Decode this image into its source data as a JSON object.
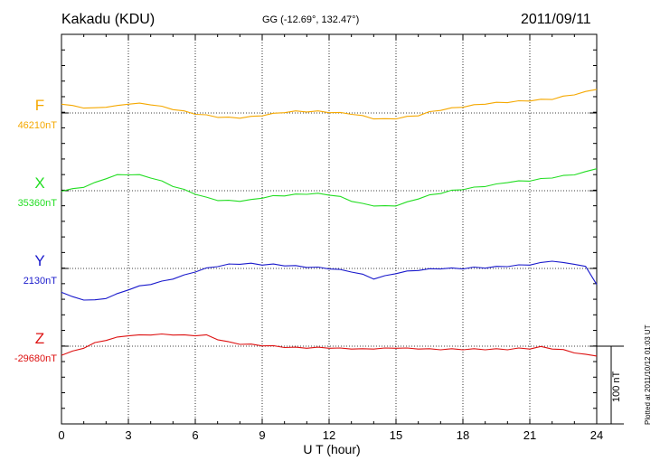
{
  "header": {
    "station": "Kakadu (KDU)",
    "coords": "GG (-12.69°, 132.47°)",
    "date": "2011/09/11"
  },
  "footer": {
    "plotted": "Plotted at 2011/10/12 01:03 UT",
    "scale_bar": "100 nT"
  },
  "chart_data": {
    "type": "line",
    "xlabel": "U T (hour)",
    "xlim": [
      0,
      24
    ],
    "xticks": [
      0,
      3,
      6,
      9,
      12,
      15,
      18,
      21,
      24
    ],
    "grid": true,
    "scale_bar_nT": 100,
    "series": [
      {
        "name": "F",
        "baseline_label": "46210nT",
        "color": "#f5a800",
        "x": [
          0,
          0.5,
          1,
          1.5,
          2,
          2.5,
          3,
          3.5,
          4,
          4.5,
          5,
          5.5,
          6,
          6.5,
          7,
          7.5,
          8,
          8.5,
          9,
          9.5,
          10,
          10.5,
          11,
          11.5,
          12,
          12.5,
          13,
          13.5,
          14,
          14.5,
          15,
          15.5,
          16,
          16.5,
          17,
          17.5,
          18,
          18.5,
          19,
          19.5,
          20,
          20.5,
          21,
          21.5,
          22,
          22.5,
          23,
          23.5,
          24
        ],
        "values": [
          12,
          9,
          7,
          6,
          8,
          9,
          12,
          12,
          11,
          8,
          5,
          2,
          -1,
          -3,
          -5,
          -6,
          -6,
          -5,
          -3,
          -1,
          1,
          2,
          2,
          2,
          1,
          0,
          -1,
          -4,
          -7,
          -8,
          -7,
          -5,
          -3,
          1,
          4,
          6,
          8,
          10,
          12,
          13,
          14,
          15,
          16,
          17,
          18,
          21,
          24,
          27,
          31
        ]
      },
      {
        "name": "X",
        "baseline_label": "35360nT",
        "color": "#22dd22",
        "x": [
          0,
          0.5,
          1,
          1.5,
          2,
          2.5,
          3,
          3.5,
          4,
          4.5,
          5,
          5.5,
          6,
          6.5,
          7,
          7.5,
          8,
          8.5,
          9,
          9.5,
          10,
          10.5,
          11,
          11.5,
          12,
          12.5,
          13,
          13.5,
          14,
          14.5,
          15,
          15.5,
          16,
          16.5,
          17,
          17.5,
          18,
          18.5,
          19,
          19.5,
          20,
          20.5,
          21,
          21.5,
          22,
          22.5,
          23,
          23.5,
          24
        ],
        "values": [
          0,
          2,
          5,
          10,
          16,
          20,
          21,
          20,
          17,
          12,
          6,
          1,
          -4,
          -9,
          -12,
          -13,
          -13,
          -12,
          -9,
          -7,
          -6,
          -5,
          -4,
          -4,
          -5,
          -8,
          -13,
          -17,
          -19,
          -20,
          -19,
          -15,
          -10,
          -6,
          -3,
          0,
          2,
          4,
          6,
          8,
          11,
          12,
          13,
          15,
          17,
          19,
          21,
          24,
          29
        ]
      },
      {
        "name": "Y",
        "baseline_label": "2130nT",
        "color": "#1a1acc",
        "x": [
          0,
          0.5,
          1,
          1.5,
          2,
          2.5,
          3,
          3.5,
          4,
          4.5,
          5,
          5.5,
          6,
          6.5,
          7,
          7.5,
          8,
          8.5,
          9,
          9.5,
          10,
          10.5,
          11,
          11.5,
          12,
          12.5,
          13,
          13.5,
          14,
          14.5,
          15,
          15.5,
          16,
          16.5,
          17,
          17.5,
          18,
          18.5,
          19,
          19.5,
          20,
          20.5,
          21,
          21.5,
          22,
          22.5,
          23,
          23.5,
          24
        ],
        "values": [
          -30,
          -37,
          -40,
          -41,
          -38,
          -33,
          -27,
          -23,
          -20,
          -17,
          -13,
          -9,
          -4,
          0,
          3,
          5,
          6,
          6,
          5,
          5,
          4,
          3,
          2,
          1,
          0,
          -2,
          -4,
          -8,
          -13,
          -10,
          -6,
          -4,
          -2,
          -1,
          0,
          0,
          0,
          1,
          1,
          2,
          3,
          4,
          5,
          7,
          10,
          7,
          6,
          2,
          -20
        ]
      },
      {
        "name": "Z",
        "baseline_label": "-29680nT",
        "color": "#dd1111",
        "x": [
          0,
          0.5,
          1,
          1.5,
          2,
          2.5,
          3,
          3.5,
          4,
          4.5,
          5,
          5.5,
          6,
          6.5,
          7,
          7.5,
          8,
          8.5,
          9,
          9.5,
          10,
          10.5,
          11,
          11.5,
          12,
          12.5,
          13,
          13.5,
          14,
          14.5,
          15,
          15.5,
          16,
          16.5,
          17,
          17.5,
          18,
          18.5,
          19,
          19.5,
          20,
          20.5,
          21,
          21.5,
          22,
          22.5,
          23,
          23.5,
          24
        ],
        "values": [
          -11,
          -7,
          -2,
          4,
          8,
          11,
          14,
          14,
          15,
          15,
          15,
          14,
          14,
          14,
          9,
          5,
          3,
          2,
          1,
          0,
          -1,
          -2,
          -2,
          -2,
          -2,
          -3,
          -3,
          -4,
          -3,
          -3,
          -2,
          -3,
          -3,
          -4,
          -4,
          -4,
          -4,
          -4,
          -4,
          -4,
          -4,
          -3,
          -3,
          -1,
          -3,
          -5,
          -8,
          -11,
          -12
        ]
      }
    ]
  }
}
